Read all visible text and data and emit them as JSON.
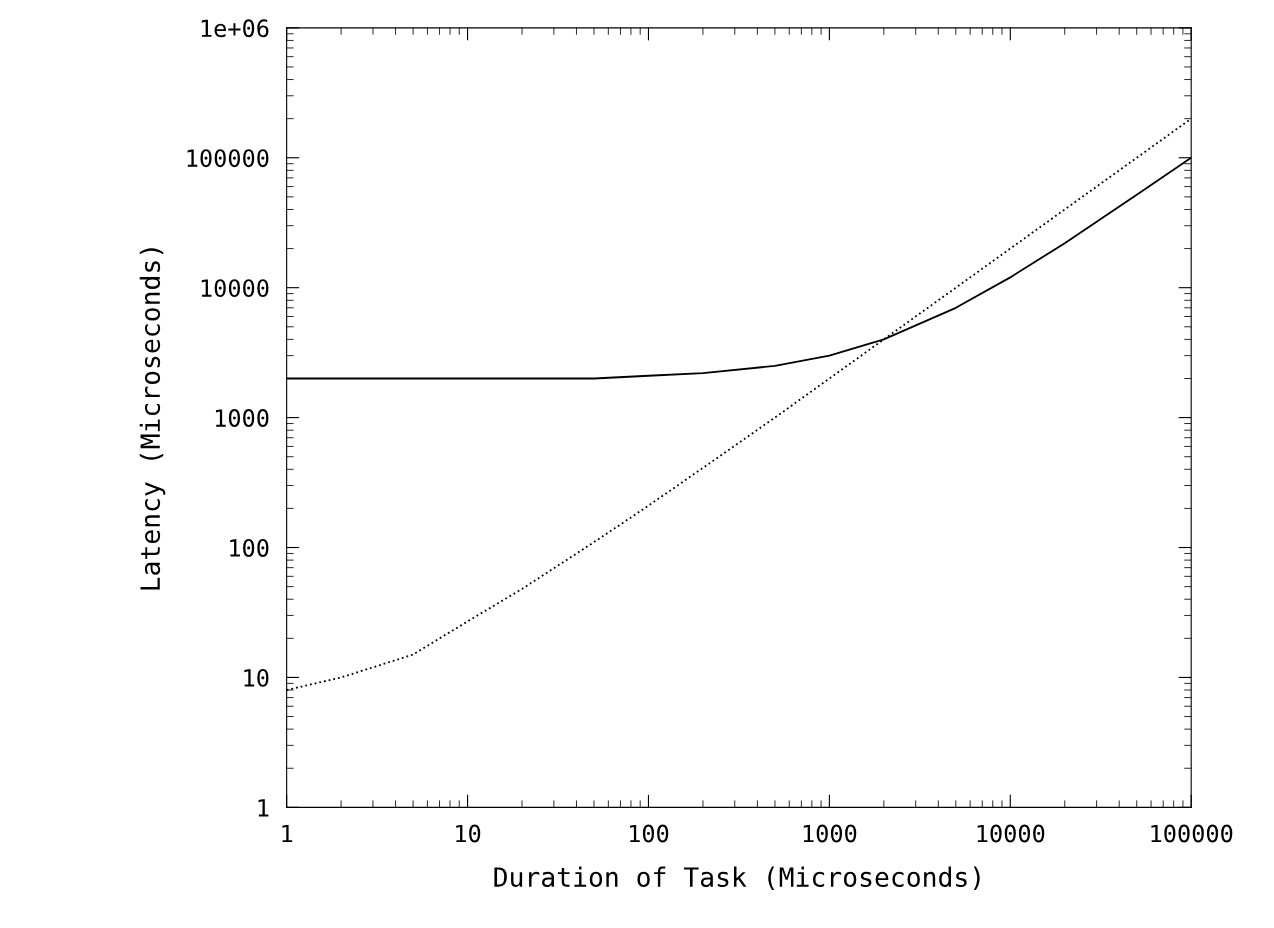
{
  "chart_data": {
    "type": "line",
    "xlabel": "Duration of Task (Microseconds)",
    "ylabel": "Latency (Microseconds)",
    "log": "xy",
    "grid": false,
    "legend": false,
    "marker": "none",
    "x": [
      1,
      2,
      5,
      10,
      20,
      50,
      100,
      200,
      500,
      1000,
      2000,
      5000,
      10000,
      20000,
      50000,
      100000
    ],
    "series": [
      {
        "color": "#000000",
        "line_style": "solid",
        "values": [
          2000,
          2000,
          2000,
          2000,
          2000,
          2000,
          2100,
          2200,
          2500,
          3000,
          4000,
          7000,
          12000,
          22000,
          52000,
          100000
        ]
      },
      {
        "color": "#000000",
        "line_style": "dotted",
        "values": [
          8,
          10,
          15,
          27,
          48,
          110,
          210,
          410,
          1000,
          2000,
          4000,
          10000,
          20000,
          40000,
          100000,
          200000
        ]
      }
    ],
    "xlim": [
      1,
      100000
    ],
    "ylim": [
      1,
      1000000
    ],
    "xticks": [
      1,
      10,
      100,
      1000,
      10000,
      100000
    ],
    "yticks": [
      1,
      10,
      100,
      1000,
      10000,
      100000,
      {
        "value": 1000000,
        "label": "1e+06"
      }
    ]
  }
}
